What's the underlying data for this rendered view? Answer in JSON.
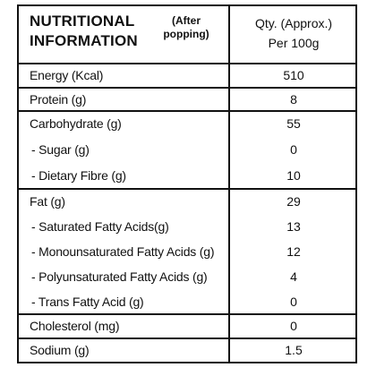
{
  "header": {
    "title_line1": "NUTRITIONAL",
    "title_line2": "INFORMATION",
    "note_line1": "(After",
    "note_line2": "popping)",
    "qty_line1": "Qty. (Approx.)",
    "qty_line2": "Per 100g"
  },
  "rows": [
    {
      "name": "Energy (Kcal)",
      "value": "510"
    },
    {
      "name": "Protein (g)",
      "value": "8"
    },
    {
      "name": "Carbohydrate (g)",
      "value": "55"
    },
    {
      "name": "- Sugar (g)",
      "value": "0"
    },
    {
      "name": "- Dietary Fibre (g)",
      "value": "10"
    },
    {
      "name": "Fat (g)",
      "value": "29"
    },
    {
      "name": "- Saturated Fatty Acids(g)",
      "value": "13"
    },
    {
      "name": "- Monounsaturated Fatty Acids (g)",
      "value": "12"
    },
    {
      "name": "- Polyunsaturated Fatty Acids (g)",
      "value": "4"
    },
    {
      "name": "- Trans Fatty Acid (g)",
      "value": "0"
    },
    {
      "name": "Cholesterol (mg)",
      "value": "0"
    },
    {
      "name": "Sodium (g)",
      "value": "1.5"
    }
  ]
}
